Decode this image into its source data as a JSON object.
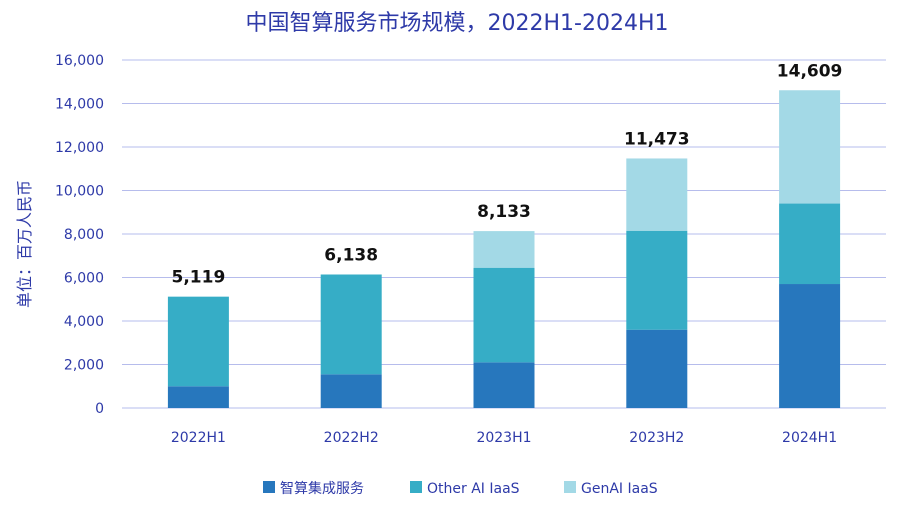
{
  "chart_data": {
    "type": "bar",
    "stacked": true,
    "title": "中国智算服务市场规模，2022H1-2024H1",
    "ylabel": "单位：百万人民币",
    "xlabel": "",
    "ylim": [
      0,
      16000
    ],
    "yticks": [
      "0",
      "2,000",
      "4,000",
      "6,000",
      "8,000",
      "10,000",
      "12,000",
      "14,000",
      "16,000"
    ],
    "grid": true,
    "legend_position": "bottom",
    "categories": [
      "2022H1",
      "2022H2",
      "2023H1",
      "2023H2",
      "2024H1"
    ],
    "series": [
      {
        "name": "智算集成服务",
        "color": "#2777bd",
        "values": [
          1000,
          1550,
          2100,
          3600,
          5700
        ]
      },
      {
        "name": "Other AI IaaS",
        "color": "#36adc6",
        "values": [
          4119,
          4588,
          4350,
          4550,
          3700
        ]
      },
      {
        "name": "GenAI IaaS",
        "color": "#a3d9e6",
        "values": [
          0,
          0,
          1683,
          3323,
          5209
        ]
      }
    ],
    "totals": [
      "5,119",
      "6,138",
      "8,133",
      "11,473",
      "14,609"
    ]
  }
}
